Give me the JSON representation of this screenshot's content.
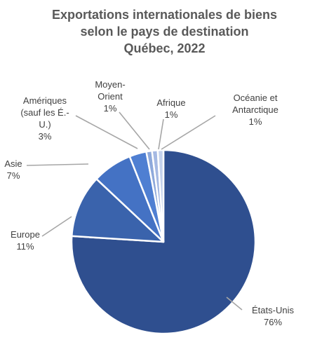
{
  "chart_data": {
    "type": "pie",
    "title_lines": [
      "Exportations internationales de biens",
      "selon le pays de destination",
      "Québec, 2022"
    ],
    "slices": [
      {
        "label_lines": [
          "États-Unis"
        ],
        "value_label": "76%",
        "value": 76,
        "color": "#2f4f8f"
      },
      {
        "label_lines": [
          "Europe"
        ],
        "value_label": "11%",
        "value": 11,
        "color": "#3a63ac"
      },
      {
        "label_lines": [
          "Asie"
        ],
        "value_label": "7%",
        "value": 7,
        "color": "#4472c4"
      },
      {
        "label_lines": [
          "Amériques",
          "(sauf les É.-",
          "U.)"
        ],
        "value_label": "3%",
        "value": 3,
        "color": "#4f7fd2"
      },
      {
        "label_lines": [
          "Moyen-",
          "Orient"
        ],
        "value_label": "1%",
        "value": 1,
        "color": "#8ea9db"
      },
      {
        "label_lines": [
          "Afrique"
        ],
        "value_label": "1%",
        "value": 1,
        "color": "#a5b9e3"
      },
      {
        "label_lines": [
          "Océanie et",
          "Antarctique"
        ],
        "value_label": "1%",
        "value": 1,
        "color": "#c4d2ec"
      }
    ],
    "start_angle_deg": 0,
    "direction": "clockwise",
    "legend": "none"
  }
}
